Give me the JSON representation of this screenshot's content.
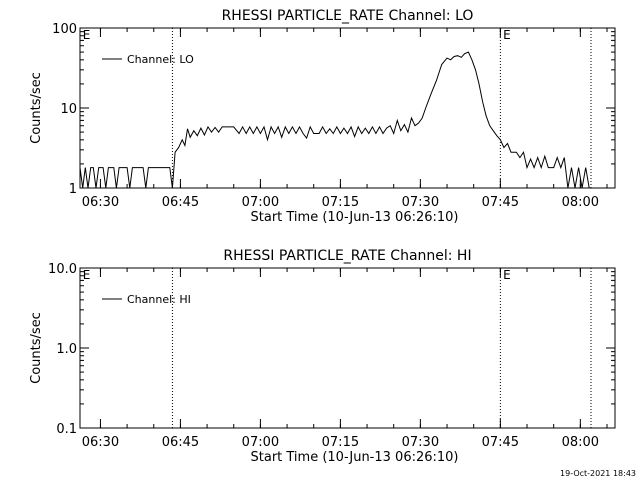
{
  "chart_data": [
    {
      "type": "line",
      "title": "RHESSI PARTICLE_RATE Channel: LO",
      "xlabel": "Start Time (10-Jun-13 06:26:10)",
      "ylabel": "Counts/sec",
      "y_scale": "log",
      "ylim": [
        1,
        100
      ],
      "y_ticks": [
        {
          "value": 1,
          "label": "1"
        },
        {
          "value": 10,
          "label": "10"
        },
        {
          "value": 100,
          "label": "100"
        }
      ],
      "xlim": [
        "06:26:10",
        "08:06:30"
      ],
      "x_ticks": [
        "06:30",
        "06:45",
        "07:00",
        "07:15",
        "07:30",
        "07:45",
        "08:00"
      ],
      "vlines": [
        "06:43:30",
        "07:45:00",
        "08:02:00"
      ],
      "markers": [
        {
          "time": "06:26:30",
          "label": "E"
        },
        {
          "time": "07:45:20",
          "label": "E"
        }
      ],
      "legend": {
        "position": "top-left",
        "label": "Channel: LO"
      },
      "series": [
        {
          "name": "Channel: LO",
          "points": [
            [
              "06:26:10",
              1.8
            ],
            [
              "06:26:40",
              1.0
            ],
            [
              "06:27:10",
              1.8
            ],
            [
              "06:27:40",
              1.0
            ],
            [
              "06:28:10",
              1.8
            ],
            [
              "06:28:40",
              1.8
            ],
            [
              "06:29:10",
              1.0
            ],
            [
              "06:29:40",
              1.8
            ],
            [
              "06:30:30",
              1.8
            ],
            [
              "06:31:00",
              1.0
            ],
            [
              "06:31:30",
              1.8
            ],
            [
              "06:32:30",
              1.8
            ],
            [
              "06:33:00",
              1.0
            ],
            [
              "06:33:30",
              1.8
            ],
            [
              "06:35:00",
              1.8
            ],
            [
              "06:35:30",
              1.0
            ],
            [
              "06:36:00",
              1.8
            ],
            [
              "06:38:00",
              1.8
            ],
            [
              "06:38:30",
              1.0
            ],
            [
              "06:39:00",
              1.8
            ],
            [
              "06:43:00",
              1.8
            ],
            [
              "06:43:30",
              1.0
            ],
            [
              "06:44:00",
              2.8
            ],
            [
              "06:44:40",
              3.2
            ],
            [
              "06:45:20",
              4.0
            ],
            [
              "06:45:50",
              3.4
            ],
            [
              "06:46:20",
              5.5
            ],
            [
              "06:46:50",
              4.3
            ],
            [
              "06:47:30",
              5.2
            ],
            [
              "06:48:10",
              4.5
            ],
            [
              "06:48:50",
              5.6
            ],
            [
              "06:49:30",
              4.6
            ],
            [
              "06:50:10",
              5.8
            ],
            [
              "06:50:50",
              5.0
            ],
            [
              "06:51:30",
              5.7
            ],
            [
              "06:52:10",
              5.0
            ],
            [
              "06:52:50",
              5.8
            ],
            [
              "06:55:00",
              5.8
            ],
            [
              "06:56:00",
              4.8
            ],
            [
              "06:56:40",
              5.8
            ],
            [
              "06:57:20",
              4.8
            ],
            [
              "06:58:00",
              5.8
            ],
            [
              "06:58:40",
              4.8
            ],
            [
              "06:59:20",
              5.8
            ],
            [
              "07:00:00",
              4.8
            ],
            [
              "07:00:40",
              5.8
            ],
            [
              "07:01:20",
              4.0
            ],
            [
              "07:02:00",
              5.8
            ],
            [
              "07:02:40",
              4.8
            ],
            [
              "07:03:20",
              5.8
            ],
            [
              "07:04:00",
              4.3
            ],
            [
              "07:04:40",
              5.8
            ],
            [
              "07:05:20",
              4.8
            ],
            [
              "07:06:00",
              5.8
            ],
            [
              "07:06:40",
              4.8
            ],
            [
              "07:07:20",
              5.8
            ],
            [
              "07:08:00",
              4.8
            ],
            [
              "07:08:40",
              4.2
            ],
            [
              "07:09:20",
              5.8
            ],
            [
              "07:10:00",
              4.8
            ],
            [
              "07:11:00",
              4.8
            ],
            [
              "07:11:40",
              5.8
            ],
            [
              "07:12:20",
              4.8
            ],
            [
              "07:13:00",
              5.5
            ],
            [
              "07:13:40",
              4.8
            ],
            [
              "07:14:20",
              5.8
            ],
            [
              "07:15:00",
              4.8
            ],
            [
              "07:15:40",
              5.6
            ],
            [
              "07:16:20",
              4.8
            ],
            [
              "07:17:00",
              5.8
            ],
            [
              "07:17:40",
              4.4
            ],
            [
              "07:18:20",
              5.8
            ],
            [
              "07:19:00",
              4.8
            ],
            [
              "07:19:40",
              5.6
            ],
            [
              "07:20:20",
              4.8
            ],
            [
              "07:21:00",
              5.8
            ],
            [
              "07:21:40",
              4.8
            ],
            [
              "07:22:20",
              5.8
            ],
            [
              "07:23:00",
              4.8
            ],
            [
              "07:23:40",
              5.6
            ],
            [
              "07:24:20",
              6.0
            ],
            [
              "07:25:00",
              4.8
            ],
            [
              "07:25:40",
              7.0
            ],
            [
              "07:26:20",
              5.2
            ],
            [
              "07:27:00",
              6.2
            ],
            [
              "07:27:40",
              5.0
            ],
            [
              "07:28:20",
              7.5
            ],
            [
              "07:29:00",
              6.0
            ],
            [
              "07:29:40",
              6.5
            ],
            [
              "07:30:20",
              7.5
            ],
            [
              "07:31:00",
              10.0
            ],
            [
              "07:32:00",
              15.0
            ],
            [
              "07:33:00",
              22.0
            ],
            [
              "07:34:00",
              35.0
            ],
            [
              "07:35:00",
              42.0
            ],
            [
              "07:35:40",
              40.0
            ],
            [
              "07:36:20",
              44.0
            ],
            [
              "07:37:00",
              45.0
            ],
            [
              "07:37:40",
              43.0
            ],
            [
              "07:38:20",
              48.0
            ],
            [
              "07:39:00",
              50.0
            ],
            [
              "07:39:40",
              40.0
            ],
            [
              "07:40:20",
              30.0
            ],
            [
              "07:41:00",
              20.0
            ],
            [
              "07:41:40",
              12.0
            ],
            [
              "07:42:20",
              8.0
            ],
            [
              "07:43:00",
              6.0
            ],
            [
              "07:43:40",
              5.2
            ],
            [
              "07:44:20",
              4.5
            ],
            [
              "07:45:00",
              4.0
            ],
            [
              "07:45:40",
              3.2
            ],
            [
              "07:46:20",
              3.6
            ],
            [
              "07:47:00",
              2.8
            ],
            [
              "07:48:00",
              2.8
            ],
            [
              "07:48:40",
              2.4
            ],
            [
              "07:49:20",
              2.8
            ],
            [
              "07:50:00",
              1.8
            ],
            [
              "07:50:40",
              2.3
            ],
            [
              "07:51:20",
              1.8
            ],
            [
              "07:52:00",
              2.4
            ],
            [
              "07:52:40",
              1.8
            ],
            [
              "07:53:20",
              2.5
            ],
            [
              "07:54:00",
              1.8
            ],
            [
              "07:55:00",
              1.8
            ],
            [
              "07:55:40",
              2.4
            ],
            [
              "07:56:20",
              1.8
            ],
            [
              "07:57:00",
              2.4
            ],
            [
              "07:57:40",
              1.0
            ],
            [
              "07:58:20",
              1.8
            ],
            [
              "07:59:00",
              1.0
            ],
            [
              "07:59:40",
              1.8
            ],
            [
              "08:00:20",
              1.0
            ],
            [
              "08:01:00",
              1.8
            ],
            [
              "08:01:40",
              1.0
            ]
          ]
        }
      ]
    },
    {
      "type": "line",
      "title": "RHESSI PARTICLE_RATE Channel: HI",
      "xlabel": "Start Time (10-Jun-13 06:26:10)",
      "ylabel": "Counts/sec",
      "y_scale": "log",
      "ylim": [
        0.1,
        10
      ],
      "y_ticks": [
        {
          "value": 0.1,
          "label": "0.1"
        },
        {
          "value": 1,
          "label": "1.0"
        },
        {
          "value": 10,
          "label": "10.0"
        }
      ],
      "xlim": [
        "06:26:10",
        "08:06:30"
      ],
      "x_ticks": [
        "06:30",
        "06:45",
        "07:00",
        "07:15",
        "07:30",
        "07:45",
        "08:00"
      ],
      "vlines": [
        "06:43:30",
        "07:45:00",
        "08:02:00"
      ],
      "markers": [
        {
          "time": "06:26:30",
          "label": "E"
        },
        {
          "time": "07:45:20",
          "label": "E"
        }
      ],
      "legend": {
        "position": "top-left",
        "label": "Channel: HI"
      },
      "series": [
        {
          "name": "Channel: HI",
          "points": []
        }
      ]
    }
  ],
  "footer": {
    "timestamp": "19-Oct-2021 18:43"
  }
}
